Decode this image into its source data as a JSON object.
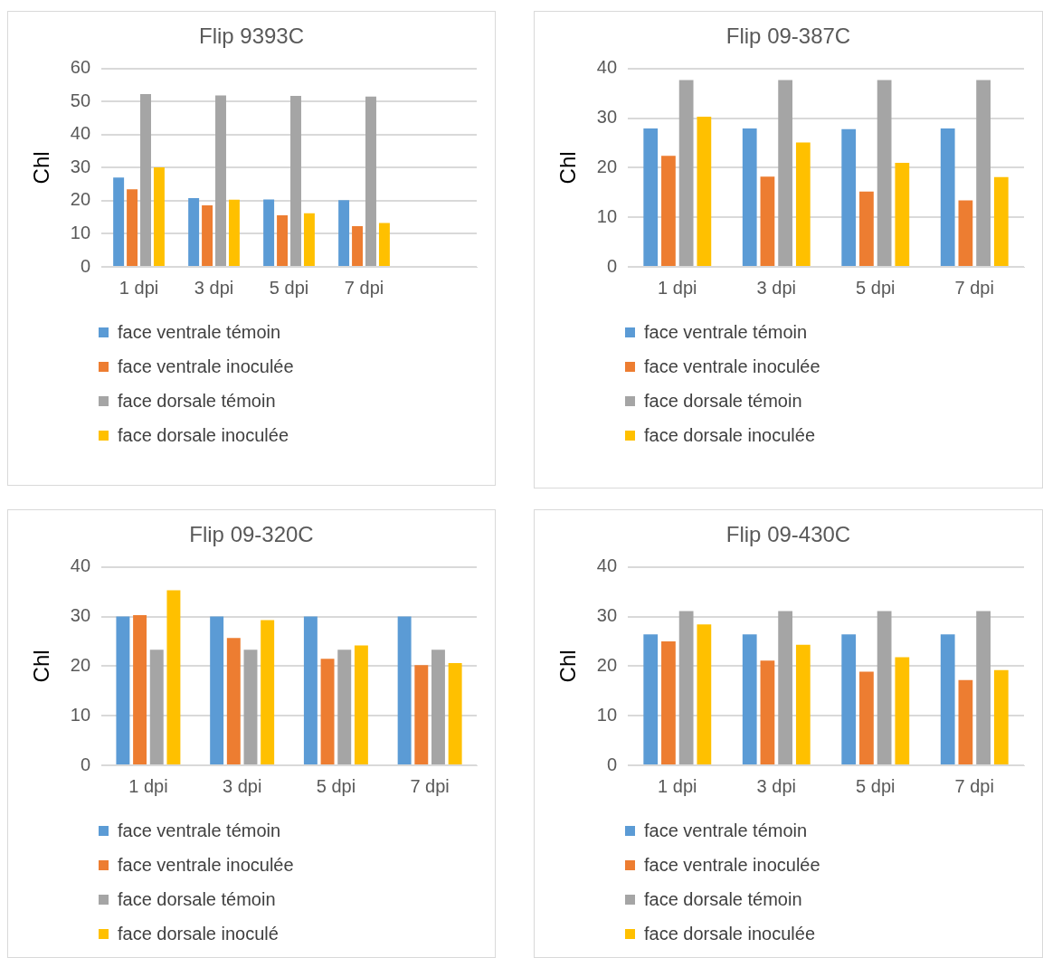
{
  "chart_data": [
    {
      "type": "bar",
      "title": "Flip 9393C",
      "ylabel": "Chl",
      "categories": [
        "1 dpi",
        "3 dpi",
        "5 dpi",
        "7 dpi",
        null
      ],
      "ylim": [
        0,
        60
      ],
      "yticks": [
        0,
        10,
        20,
        30,
        40,
        50,
        60
      ],
      "grid": "y",
      "legend": "bottom",
      "series": [
        {
          "name": "face ventrale témoin",
          "color": "#5b9bd5",
          "values": [
            27.0,
            20.8,
            20.4,
            20.2,
            null
          ]
        },
        {
          "name": "face ventrale inoculée",
          "color": "#ed7d31",
          "values": [
            23.5,
            18.6,
            15.6,
            12.3,
            null
          ]
        },
        {
          "name": "face dorsale témoin",
          "color": "#a5a5a5",
          "values": [
            52.3,
            51.9,
            51.7,
            51.5,
            null
          ]
        },
        {
          "name": "face dorsale inoculée",
          "color": "#ffc000",
          "values": [
            30.1,
            20.3,
            16.2,
            13.3,
            null
          ]
        }
      ]
    },
    {
      "type": "bar",
      "title": "Flip 09-387C",
      "ylabel": "Chl",
      "categories": [
        "1 dpi",
        "3 dpi",
        "5 dpi",
        "7 dpi"
      ],
      "ylim": [
        0,
        40
      ],
      "yticks": [
        0,
        10,
        20,
        30,
        40
      ],
      "grid": "y",
      "legend": "bottom",
      "series": [
        {
          "name": "face ventrale témoin",
          "color": "#5b9bd5",
          "values": [
            27.9,
            27.9,
            27.8,
            27.9
          ]
        },
        {
          "name": "face ventrale inoculée",
          "color": "#ed7d31",
          "values": [
            22.4,
            18.2,
            15.2,
            13.4
          ]
        },
        {
          "name": "face dorsale témoin",
          "color": "#a5a5a5",
          "values": [
            37.7,
            37.7,
            37.7,
            37.7
          ]
        },
        {
          "name": "face dorsale inoculée",
          "color": "#ffc000",
          "values": [
            30.3,
            25.1,
            21.0,
            18.1
          ]
        }
      ]
    },
    {
      "type": "bar",
      "title": "Flip 09-320C",
      "ylabel": "Chl",
      "categories": [
        "1 dpi",
        "3 dpi",
        "5 dpi",
        "7 dpi"
      ],
      "ylim": [
        0,
        40
      ],
      "yticks": [
        0,
        10,
        20,
        30,
        40
      ],
      "grid": "y",
      "legend": "bottom",
      "series": [
        {
          "name": "face ventrale témoin",
          "color": "#5b9bd5",
          "values": [
            30.0,
            30.0,
            30.0,
            30.0
          ]
        },
        {
          "name": "face ventrale inoculée",
          "color": "#ed7d31",
          "values": [
            30.3,
            25.7,
            21.5,
            20.2
          ]
        },
        {
          "name": "face dorsale témoin",
          "color": "#a5a5a5",
          "values": [
            23.3,
            23.3,
            23.3,
            23.3
          ]
        },
        {
          "name": "face dorsale inoculé",
          "color": "#ffc000",
          "values": [
            35.3,
            29.3,
            24.2,
            20.6
          ]
        }
      ]
    },
    {
      "type": "bar",
      "title": "Flip 09-430C",
      "ylabel": "Chl",
      "categories": [
        "1 dpi",
        "3 dpi",
        "5 dpi",
        "7 dpi"
      ],
      "ylim": [
        0,
        40
      ],
      "yticks": [
        0,
        10,
        20,
        30,
        40
      ],
      "grid": "y",
      "legend": "bottom",
      "series": [
        {
          "name": "face ventrale témoin",
          "color": "#5b9bd5",
          "values": [
            26.4,
            26.4,
            26.4,
            26.4
          ]
        },
        {
          "name": "face ventrale inoculée",
          "color": "#ed7d31",
          "values": [
            25.0,
            21.1,
            18.9,
            17.2
          ]
        },
        {
          "name": "face dorsale témoin",
          "color": "#a5a5a5",
          "values": [
            31.1,
            31.1,
            31.1,
            31.1
          ]
        },
        {
          "name": "face dorsale inoculée",
          "color": "#ffc000",
          "values": [
            28.4,
            24.3,
            21.8,
            19.2
          ]
        }
      ]
    }
  ]
}
